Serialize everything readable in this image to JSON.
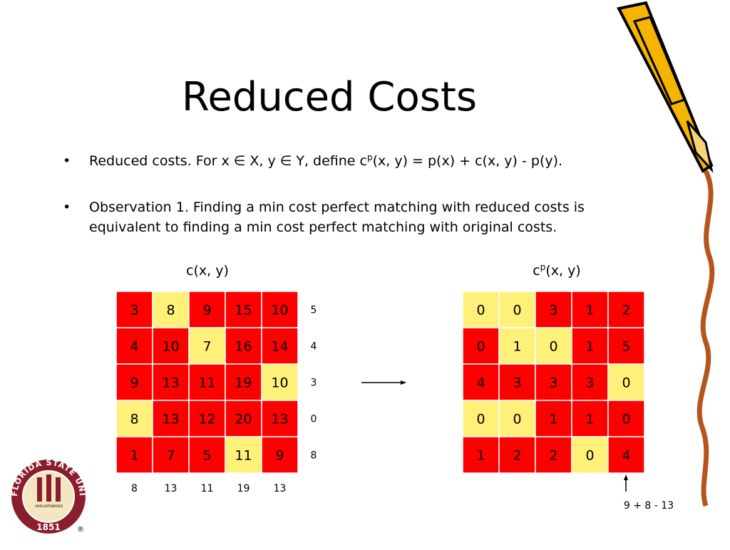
{
  "title": "Reduced Costs",
  "bullets": [
    {
      "parts": [
        "Reduced costs.  For x ∈ X, y ∈ Y, define c",
        "p",
        "(x, y) = p(x) + c(x, y) - p(y)."
      ],
      "superscript_part": 1
    },
    {
      "lines": [
        "Observation 1.  Finding a min cost perfect matching with reduced costs is",
        "equivalent to finding a min cost perfect matching with original costs."
      ]
    }
  ],
  "left_matrix": {
    "label": "c(x, y)",
    "rows": [
      [
        3,
        8,
        9,
        15,
        10
      ],
      [
        4,
        10,
        7,
        16,
        14
      ],
      [
        9,
        13,
        11,
        19,
        10
      ],
      [
        8,
        13,
        12,
        20,
        13
      ],
      [
        1,
        7,
        5,
        11,
        9
      ]
    ],
    "highlighted_cells": [
      [
        0,
        1
      ],
      [
        1,
        2
      ],
      [
        2,
        4
      ],
      [
        3,
        0
      ],
      [
        4,
        3
      ]
    ],
    "row_potentials": [
      5,
      4,
      3,
      0,
      8
    ],
    "column_potentials": [
      8,
      13,
      11,
      19,
      13
    ]
  },
  "right_matrix": {
    "label_parts": [
      "c",
      "p",
      "(x, y)"
    ],
    "rows": [
      [
        0,
        0,
        3,
        1,
        2
      ],
      [
        0,
        1,
        0,
        1,
        5
      ],
      [
        4,
        3,
        3,
        3,
        0
      ],
      [
        0,
        0,
        1,
        1,
        0
      ],
      [
        1,
        2,
        2,
        0,
        4
      ]
    ],
    "highlighted_cells": [
      [
        0,
        0
      ],
      [
        0,
        1
      ],
      [
        1,
        1
      ],
      [
        1,
        2
      ],
      [
        2,
        4
      ],
      [
        3,
        0
      ],
      [
        3,
        1
      ],
      [
        4,
        3
      ]
    ],
    "annotation": "9 + 8 - 13"
  },
  "cell_color": "#ff0000",
  "highlight_color": "#fff07a",
  "logo": {
    "ring_text": "FLORIDA STATE UNIVERSITY",
    "year": "1851",
    "mottos": [
      "VIRES",
      "ARTES",
      "MORES"
    ],
    "mark": "®"
  }
}
